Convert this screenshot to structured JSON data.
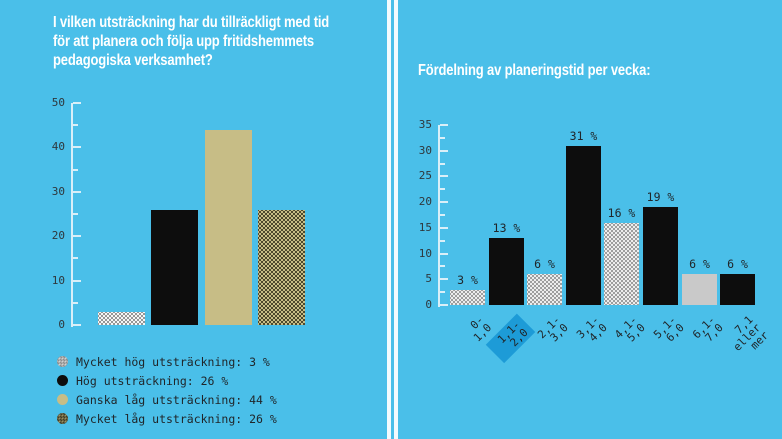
{
  "colors": {
    "background": "#4ABFE9",
    "divider": "#F3FBFE",
    "title_text": "#FFFFFF",
    "axis": "#D9EFF8",
    "tick_label_text": "#2F373C",
    "bar_black": "#0D0D0D",
    "bar_khaki": "#C7BD86",
    "bar_gray_solid": "#C9C9C9",
    "highlight_blue": "#1D9BD7"
  },
  "left_panel": {
    "title": "I vilken utsträckning har du tillräckligt med tid\nför att planera och följa upp fritidshemmets\npedagogiska verksamhet?",
    "legend": [
      {
        "marker": "dot-white",
        "text": "Mycket hög utsträckning: 3 %"
      },
      {
        "marker": "black",
        "text": "Hög utsträckning: 26 %"
      },
      {
        "marker": "khaki",
        "text": "Ganska låg utsträckning: 44 %"
      },
      {
        "marker": "dot-khaki",
        "text": "Mycket låg utsträckning: 26 %"
      }
    ]
  },
  "right_panel": {
    "title": "Fördelning av planeringstid per vecka:"
  },
  "chart_data": [
    {
      "id": "left",
      "type": "bar",
      "title": "I vilken utsträckning har du tillräckligt med tid för att planera och följa upp fritidshemmets pedagogiska verksamhet?",
      "categories": [
        "Mycket hög utsträckning",
        "Hög utsträckning",
        "Ganska låg utsträckning",
        "Mycket låg utsträckning"
      ],
      "values": [
        3,
        26,
        44,
        26
      ],
      "unit": "%",
      "fills": [
        "dot-white",
        "black",
        "khaki",
        "dot-khaki"
      ],
      "ylim": [
        0,
        50
      ],
      "y_ticks": [
        0,
        10,
        20,
        30,
        40,
        50
      ],
      "minor_ticks": true,
      "show_value_labels": false,
      "show_x_tick_labels": false,
      "legend_position": "bottom",
      "grid": false
    },
    {
      "id": "right",
      "type": "bar",
      "title": "Fördelning av planeringstid per vecka:",
      "categories": [
        "0-1,0",
        "1,1-2,0",
        "2,1-3,0",
        "3,1-4,0",
        "4,1-5,0",
        "5,1-6,0",
        "6,1-7,0",
        "7,1 eller mer"
      ],
      "x_tick_display": [
        "0-1,0",
        "1,1-2,0",
        "2,1-3,0",
        "3,1-4,0",
        "4,1-5,0",
        "5,1-6,0",
        "6,1-7,0",
        "7,1\neller\nmer"
      ],
      "values": [
        3,
        13,
        6,
        31,
        16,
        19,
        6,
        6
      ],
      "value_labels": [
        "3 %",
        "13 %",
        "6 %",
        "31 %",
        "16 %",
        "19 %",
        "6 %",
        "6 %"
      ],
      "unit": "%",
      "fills": [
        "dot-gray",
        "black",
        "dot-gray",
        "black",
        "dot-gray",
        "black",
        "gray",
        "black"
      ],
      "highlighted_index": 1,
      "highlighted_category": "1,1-2,0",
      "ylim": [
        0,
        35
      ],
      "y_ticks": [
        0,
        5,
        10,
        15,
        20,
        25,
        30,
        35
      ],
      "minor_ticks": true,
      "show_value_labels": true,
      "show_x_tick_labels": true,
      "x_tick_label_rotation_deg": -45,
      "legend_position": "none",
      "grid": false
    }
  ]
}
